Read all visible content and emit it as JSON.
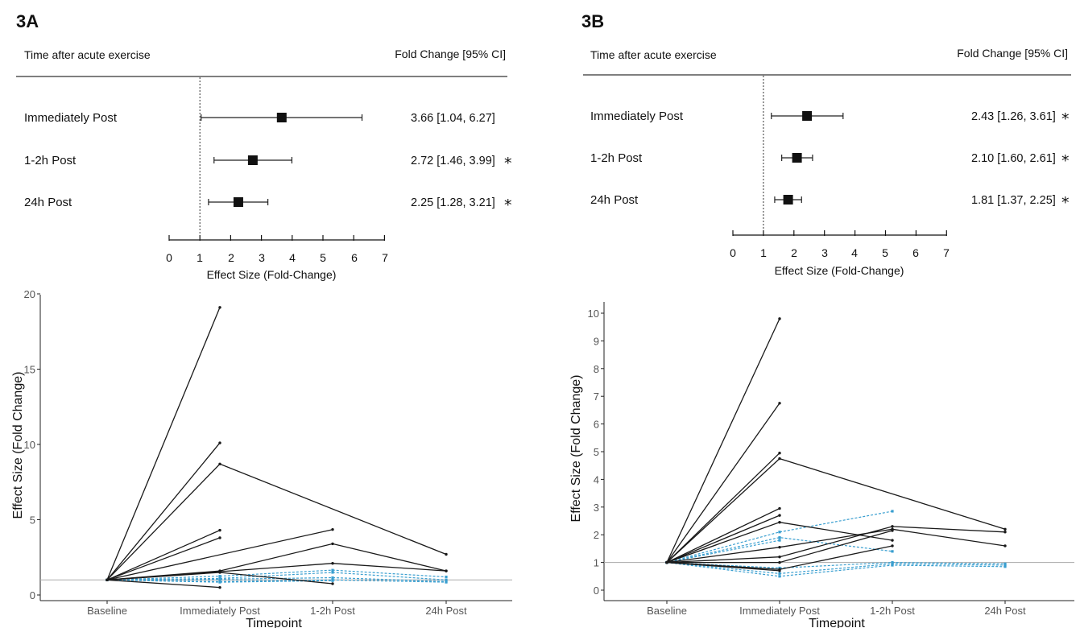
{
  "panels": [
    {
      "label": "3A",
      "forest": {
        "header_left": "Time after acute exercise",
        "header_right": "Fold Change [95% CI]",
        "xlabel": "Effect Size (Fold-Change)",
        "ticks": [
          0,
          1,
          2,
          3,
          4,
          5,
          6,
          7
        ],
        "rows": [
          {
            "label": "Immediately Post",
            "est": 3.66,
            "lo": 1.04,
            "hi": 6.27,
            "text": "3.66 [1.04, 6.27]",
            "sig": ""
          },
          {
            "label": "1-2h Post",
            "est": 2.72,
            "lo": 1.46,
            "hi": 3.99,
            "text": "2.72 [1.46, 3.99]",
            "sig": "*"
          },
          {
            "label": "24h Post",
            "est": 2.25,
            "lo": 1.28,
            "hi": 3.21,
            "text": "2.25 [1.28, 3.21]",
            "sig": "*"
          }
        ]
      },
      "spaghetti": {
        "ylabel": "Effect Size (Fold Change)",
        "xlabel": "Timepoint",
        "categories": [
          "Baseline",
          "Immediately Post",
          "1-2h Post",
          "24h Post"
        ],
        "yticks": [
          0,
          5,
          10,
          15,
          20
        ],
        "ylim": [
          -0.3,
          20.2
        ],
        "reference_line": 1
      }
    },
    {
      "label": "3B",
      "forest": {
        "header_left": "Time after acute exercise",
        "header_right": "Fold Change [95% CI]",
        "xlabel": "Effect Size (Fold-Change)",
        "ticks": [
          0,
          1,
          2,
          3,
          4,
          5,
          6,
          7
        ],
        "rows": [
          {
            "label": "Immediately Post",
            "est": 2.43,
            "lo": 1.26,
            "hi": 3.61,
            "text": "2.43 [1.26, 3.61]",
            "sig": "*"
          },
          {
            "label": "1-2h Post",
            "est": 2.1,
            "lo": 1.6,
            "hi": 2.61,
            "text": "2.10 [1.60, 2.61]",
            "sig": "*"
          },
          {
            "label": "24h Post",
            "est": 1.81,
            "lo": 1.37,
            "hi": 2.25,
            "text": "1.81 [1.37, 2.25]",
            "sig": "*"
          }
        ]
      },
      "spaghetti": {
        "ylabel": "Effect Size (Fold Change)",
        "xlabel": "Timepoint",
        "categories": [
          "Baseline",
          "Immediately Post",
          "1-2h Post",
          "24h Post"
        ],
        "yticks": [
          0,
          1,
          2,
          3,
          4,
          5,
          6,
          7,
          8,
          9,
          10
        ],
        "ylim": [
          -0.4,
          10.3
        ],
        "reference_line": 1
      }
    }
  ],
  "colors": {
    "solid": "#1a1a1a",
    "dashed": "#3a9fd0",
    "reference": "#aaaaaa"
  },
  "chart_data": [
    {
      "type": "forest",
      "title": "3A",
      "xlabel": "Effect Size (Fold-Change)",
      "xlim": [
        0,
        7
      ],
      "reference_line": 1,
      "categories": [
        "Immediately Post",
        "1-2h Post",
        "24h Post"
      ],
      "estimate": [
        3.66,
        2.72,
        2.25
      ],
      "ci_low": [
        1.04,
        1.46,
        1.28
      ],
      "ci_high": [
        6.27,
        3.99,
        3.21
      ]
    },
    {
      "type": "forest",
      "title": "3B",
      "xlabel": "Effect Size (Fold-Change)",
      "xlim": [
        0,
        7
      ],
      "reference_line": 1,
      "categories": [
        "Immediately Post",
        "1-2h Post",
        "24h Post"
      ],
      "estimate": [
        2.43,
        2.1,
        1.81
      ],
      "ci_low": [
        1.26,
        1.6,
        1.37
      ],
      "ci_high": [
        3.61,
        2.61,
        2.25
      ]
    },
    {
      "type": "line",
      "title": "3A",
      "xlabel": "Timepoint",
      "ylabel": "Effect Size (Fold Change)",
      "categories": [
        "Baseline",
        "Immediately Post",
        "1-2h Post",
        "24h Post"
      ],
      "ylim": [
        0,
        20
      ],
      "series": [
        {
          "style": "solid",
          "values": [
            1,
            19.1,
            null,
            null
          ]
        },
        {
          "style": "solid",
          "values": [
            1,
            10.1,
            null,
            null
          ]
        },
        {
          "style": "solid",
          "values": [
            1,
            8.7,
            null,
            2.7
          ]
        },
        {
          "style": "solid",
          "values": [
            1,
            4.3,
            null,
            null
          ]
        },
        {
          "style": "solid",
          "values": [
            1,
            3.8,
            null,
            null
          ]
        },
        {
          "style": "solid",
          "values": [
            1,
            null,
            4.35,
            null
          ]
        },
        {
          "style": "solid",
          "values": [
            1,
            1.6,
            3.4,
            1.6
          ]
        },
        {
          "style": "solid",
          "values": [
            1,
            1.55,
            2.1,
            1.6
          ]
        },
        {
          "style": "solid",
          "values": [
            1,
            1.5,
            0.75,
            null
          ]
        },
        {
          "style": "solid",
          "values": [
            1,
            0.5,
            null,
            null
          ]
        },
        {
          "style": "dashed",
          "values": [
            1,
            1.25,
            1.65,
            1.2
          ]
        },
        {
          "style": "dashed",
          "values": [
            1,
            1.1,
            1.5,
            1.0
          ]
        },
        {
          "style": "dashed",
          "values": [
            1,
            1.05,
            1.15,
            0.9
          ]
        },
        {
          "style": "dashed",
          "values": [
            1,
            0.9,
            1.0,
            0.85
          ]
        },
        {
          "style": "dashed",
          "values": [
            1,
            0.85,
            0.95,
            null
          ]
        }
      ]
    },
    {
      "type": "line",
      "title": "3B",
      "xlabel": "Timepoint",
      "ylabel": "Effect Size (Fold Change)",
      "categories": [
        "Baseline",
        "Immediately Post",
        "1-2h Post",
        "24h Post"
      ],
      "ylim": [
        0,
        10
      ],
      "series": [
        {
          "style": "solid",
          "values": [
            1,
            9.8,
            null,
            null
          ]
        },
        {
          "style": "solid",
          "values": [
            1,
            6.75,
            null,
            null
          ]
        },
        {
          "style": "solid",
          "values": [
            1,
            4.95,
            null,
            null
          ]
        },
        {
          "style": "solid",
          "values": [
            1,
            4.75,
            null,
            2.2
          ]
        },
        {
          "style": "solid",
          "values": [
            1,
            2.95,
            null,
            null
          ]
        },
        {
          "style": "solid",
          "values": [
            1,
            2.7,
            null,
            null
          ]
        },
        {
          "style": "solid",
          "values": [
            1,
            2.45,
            1.8,
            null
          ]
        },
        {
          "style": "solid",
          "values": [
            1,
            1.55,
            2.2,
            1.6
          ]
        },
        {
          "style": "solid",
          "values": [
            1,
            1.2,
            2.3,
            2.1
          ]
        },
        {
          "style": "solid",
          "values": [
            1,
            1.0,
            2.15,
            null
          ]
        },
        {
          "style": "solid",
          "values": [
            1,
            0.75,
            1.6,
            null
          ]
        },
        {
          "style": "solid",
          "values": [
            1,
            0.7,
            null,
            null
          ]
        },
        {
          "style": "dashed",
          "values": [
            1,
            2.1,
            2.85,
            null
          ]
        },
        {
          "style": "dashed",
          "values": [
            1,
            1.9,
            1.4,
            null
          ]
        },
        {
          "style": "dashed",
          "values": [
            1,
            1.8,
            null,
            null
          ]
        },
        {
          "style": "dashed",
          "values": [
            1,
            0.8,
            1.0,
            0.95
          ]
        },
        {
          "style": "dashed",
          "values": [
            1,
            0.6,
            0.95,
            0.9
          ]
        },
        {
          "style": "dashed",
          "values": [
            1,
            0.5,
            0.9,
            0.85
          ]
        }
      ]
    }
  ]
}
